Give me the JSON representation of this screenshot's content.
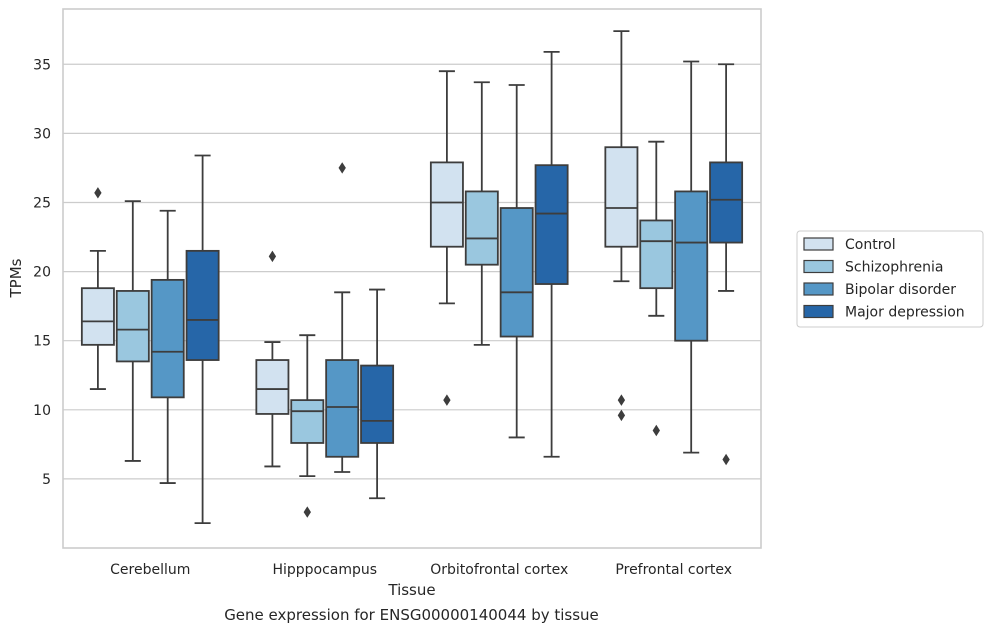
{
  "chart_data": {
    "type": "box",
    "caption": "Gene expression for ENSG00000140044 by tissue",
    "xlabel": "Tissue",
    "ylabel": "TPMs",
    "ylim": [
      0.0,
      39.0
    ],
    "yticks": [
      5,
      10,
      15,
      20,
      25,
      30,
      35
    ],
    "grid": true,
    "legend_position": "right",
    "categories": [
      "Cerebellum",
      "Hipppocampus",
      "Orbitofrontal cortex",
      "Prefrontal cortex"
    ],
    "series": [
      {
        "name": "Control",
        "color": "#d2e2f0",
        "boxes": [
          {
            "whislo": 11.5,
            "q1": 14.7,
            "med": 16.4,
            "q3": 18.8,
            "whishi": 21.5,
            "fliers": [
              25.7
            ]
          },
          {
            "whislo": 5.9,
            "q1": 9.7,
            "med": 11.5,
            "q3": 13.6,
            "whishi": 14.9,
            "fliers": [
              21.1
            ]
          },
          {
            "whislo": 17.7,
            "q1": 21.8,
            "med": 25.0,
            "q3": 27.9,
            "whishi": 34.5,
            "fliers": [
              10.7
            ]
          },
          {
            "whislo": 19.3,
            "q1": 21.8,
            "med": 24.6,
            "q3": 29.0,
            "whishi": 37.4,
            "fliers": [
              10.7,
              9.6
            ]
          }
        ]
      },
      {
        "name": "Schizophrenia",
        "color": "#9ac7df",
        "boxes": [
          {
            "whislo": 6.3,
            "q1": 13.5,
            "med": 15.8,
            "q3": 18.6,
            "whishi": 25.1,
            "fliers": []
          },
          {
            "whislo": 5.2,
            "q1": 7.6,
            "med": 9.9,
            "q3": 10.7,
            "whishi": 15.4,
            "fliers": [
              2.6
            ]
          },
          {
            "whislo": 14.7,
            "q1": 20.5,
            "med": 22.4,
            "q3": 25.8,
            "whishi": 33.7,
            "fliers": []
          },
          {
            "whislo": 16.8,
            "q1": 18.8,
            "med": 22.2,
            "q3": 23.7,
            "whishi": 29.4,
            "fliers": [
              8.5
            ]
          }
        ]
      },
      {
        "name": "Bipolar disorder",
        "color": "#5597c6",
        "boxes": [
          {
            "whislo": 4.7,
            "q1": 10.9,
            "med": 14.2,
            "q3": 19.4,
            "whishi": 24.4,
            "fliers": []
          },
          {
            "whislo": 5.5,
            "q1": 6.6,
            "med": 10.2,
            "q3": 13.6,
            "whishi": 18.5,
            "fliers": [
              27.5
            ]
          },
          {
            "whislo": 8.0,
            "q1": 15.3,
            "med": 18.5,
            "q3": 24.6,
            "whishi": 33.5,
            "fliers": []
          },
          {
            "whislo": 6.9,
            "q1": 15.0,
            "med": 22.1,
            "q3": 25.8,
            "whishi": 35.2,
            "fliers": []
          }
        ]
      },
      {
        "name": "Major depression",
        "color": "#2666a8",
        "boxes": [
          {
            "whislo": 1.8,
            "q1": 13.6,
            "med": 16.5,
            "q3": 21.5,
            "whishi": 28.4,
            "fliers": []
          },
          {
            "whislo": 3.6,
            "q1": 7.6,
            "med": 9.2,
            "q3": 13.2,
            "whishi": 18.7,
            "fliers": []
          },
          {
            "whislo": 6.6,
            "q1": 19.1,
            "med": 24.2,
            "q3": 27.7,
            "whishi": 35.9,
            "fliers": []
          },
          {
            "whislo": 18.6,
            "q1": 22.1,
            "med": 25.2,
            "q3": 27.9,
            "whishi": 35.0,
            "fliers": [
              6.4
            ]
          }
        ]
      }
    ]
  }
}
